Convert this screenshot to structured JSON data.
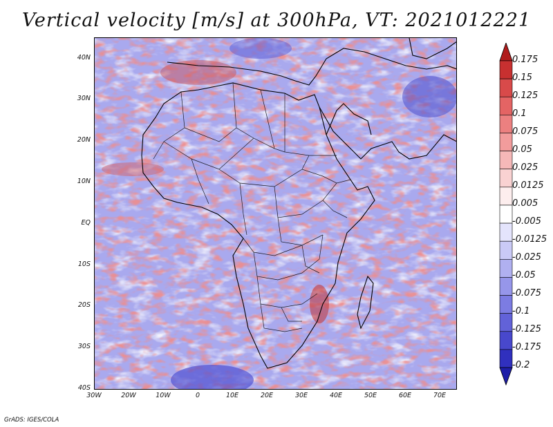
{
  "title": "Vertical velocity [m/s] at 300hPa, VT: 2021012221",
  "credit": "GrADS: IGES/COLA",
  "lat_labels": [
    "40N",
    "30N",
    "20N",
    "10N",
    "EQ",
    "10S",
    "20S",
    "30S",
    "40S"
  ],
  "lon_labels": [
    "30W",
    "20W",
    "10W",
    "0",
    "10E",
    "20E",
    "30E",
    "40E",
    "50E",
    "60E",
    "70E"
  ],
  "colorbar": {
    "labels": [
      "0.175",
      "0.15",
      "0.125",
      "0.1",
      "0.075",
      "0.05",
      "0.025",
      "0.0125",
      "0.005",
      "-0.005",
      "-0.0125",
      "-0.025",
      "-0.05",
      "-0.075",
      "-0.1",
      "-0.125",
      "-0.175",
      "-0.2"
    ],
    "colors": [
      "#b01c1c",
      "#c83030",
      "#d84a4a",
      "#e46464",
      "#ec8080",
      "#f29c9c",
      "#f6b8b8",
      "#f9d2d2",
      "#fdeeee",
      "#ffffff",
      "#e4e4fc",
      "#cacaf6",
      "#b0b0f0",
      "#9696ea",
      "#7c7ce2",
      "#6262d8",
      "#4848cc",
      "#3030be",
      "#1e1ea8"
    ]
  }
}
